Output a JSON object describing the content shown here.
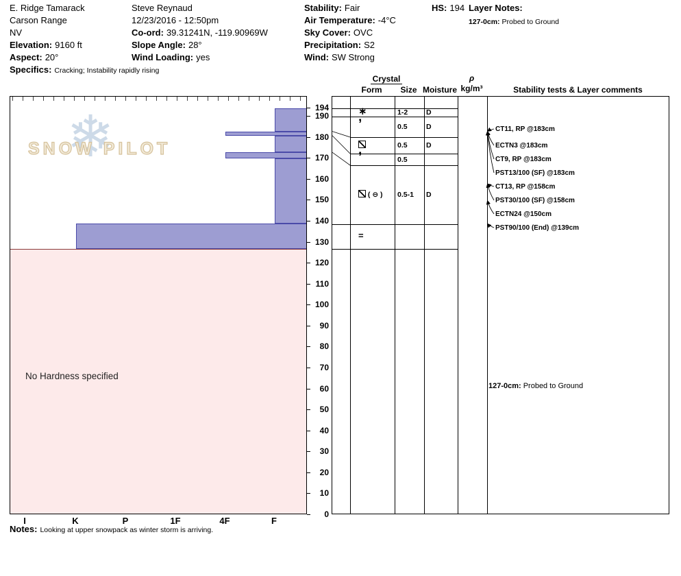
{
  "header": {
    "col1": {
      "site": "E. Ridge Tamarack",
      "range": "Carson Range",
      "state": "NV",
      "elevation_label": "Elevation:",
      "elevation": "9160 ft",
      "aspect_label": "Aspect:",
      "aspect": "20°",
      "specifics_label": "Specifics:",
      "specifics": "Cracking;  Instability rapidly rising"
    },
    "col2": {
      "observer": "Steve Reynaud",
      "datetime": "12/23/2016 - 12:50pm",
      "coord_label": "Co-ord:",
      "coord": "39.31241N, -119.90969W",
      "slope_angle_label": "Slope Angle:",
      "slope_angle": "28°",
      "wind_loading_label": "Wind Loading:",
      "wind_loading": "yes"
    },
    "col3": {
      "stability_label": "Stability:",
      "stability": "Fair",
      "air_temp_label": "Air Temperature:",
      "air_temp": "-4°C",
      "sky_label": "Sky Cover:",
      "sky": "OVC",
      "precip_label": "Precipitation:",
      "precip": "S2",
      "wind_label": "Wind:",
      "wind": "SW Strong"
    },
    "col4": {
      "hs_label": "HS:",
      "hs": "194",
      "layer_notes_label": "Layer Notes:",
      "layer_note_depth": "127-0cm:",
      "layer_note_text": "Probed to Ground"
    }
  },
  "table_header": {
    "crystal": "Crystal",
    "form": "Form",
    "size": "Size",
    "moisture": "Moisture",
    "rho": "ρ",
    "rho_units": "kg/m³",
    "comments": "Stability tests & Layer comments"
  },
  "tests": [
    {
      "label": "CT11, RP @183cm",
      "depth": 183
    },
    {
      "label": "ECTN3 @183cm",
      "depth": 183
    },
    {
      "label": "CT9, RP @183cm",
      "depth": 183
    },
    {
      "label": "PST13/100 (SF) @183cm",
      "depth": 183
    },
    {
      "label": "CT13, RP @158cm",
      "depth": 158
    },
    {
      "label": "PST30/100 (SF) @158cm",
      "depth": 158
    },
    {
      "label": "ECTN24 @150cm",
      "depth": 150
    },
    {
      "label": "PST90/100 (End) @139cm",
      "depth": 139
    }
  ],
  "layer_comment": {
    "depth_label": "127-0cm:",
    "text": "Probed to Ground"
  },
  "footer": {
    "notes_label": "Notes:",
    "notes": "Looking at upper snowpack as winter storm is arriving."
  },
  "chart_data": {
    "type": "bar",
    "title": "Snowpit hardness profile",
    "orientation": "horizontal",
    "watermark": "SNOW PILOT",
    "hardness_categories": [
      "I",
      "K",
      "P",
      "1F",
      "4F",
      "F"
    ],
    "depth_ticks": [
      194,
      190,
      180,
      170,
      160,
      150,
      140,
      130,
      120,
      110,
      100,
      90,
      80,
      70,
      60,
      50,
      40,
      30,
      20,
      10,
      0
    ],
    "ylim": [
      0,
      194
    ],
    "hs_total": 194,
    "layers": [
      {
        "top": 194,
        "bottom": 183,
        "hardness": "F"
      },
      {
        "top": 183,
        "bottom": 181,
        "hardness": "4F"
      },
      {
        "top": 181,
        "bottom": 173,
        "hardness": "F"
      },
      {
        "top": 173,
        "bottom": 170,
        "hardness": "4F"
      },
      {
        "top": 170,
        "bottom": 139,
        "hardness": "F"
      },
      {
        "top": 139,
        "bottom": 127,
        "hardness": "K"
      }
    ],
    "no_hardness_region": {
      "top": 127,
      "bottom": 0,
      "label": "No Hardness specified"
    },
    "rows": [
      {
        "top": 194,
        "bottom": 190,
        "form": "PP",
        "size": "1-2",
        "moisture": "D"
      },
      {
        "top": 190,
        "bottom": 183,
        "form": "DF",
        "size": "0.5",
        "moisture": "D"
      },
      {
        "top": 183,
        "bottom": 181,
        "form": "FC",
        "size": "0.5",
        "moisture": "D"
      },
      {
        "top": 181,
        "bottom": 173,
        "form": "DF",
        "size": "0.5",
        "moisture": ""
      },
      {
        "top": 173,
        "bottom": 139,
        "form": "FC(MF)",
        "size": "0.5-1",
        "moisture": "D"
      },
      {
        "top": 139,
        "bottom": 127,
        "form": "IF",
        "size": "",
        "moisture": ""
      }
    ],
    "colors": {
      "layer_fill": "#9d9dd2",
      "layer_border": "#4a4aa8",
      "no_hardness_fill": "#fdeaea"
    }
  }
}
